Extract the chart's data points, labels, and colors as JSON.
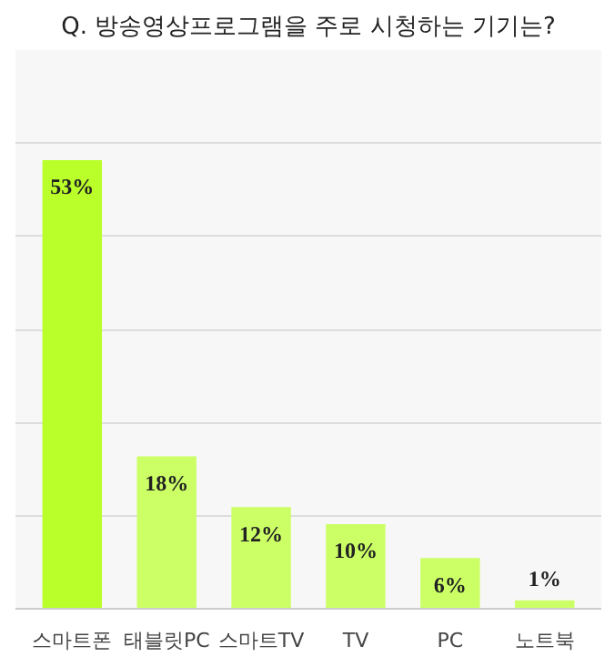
{
  "chart_data": {
    "type": "bar",
    "title": "Q. 방송영상프로그램을 주로 시청하는 기기는?",
    "categories": [
      "스마트폰",
      "태블릿PC",
      "스마트TV",
      "TV",
      "PC",
      "노트북"
    ],
    "values": [
      53,
      18,
      12,
      10,
      6,
      1
    ],
    "value_labels": [
      "53%",
      "18%",
      "12%",
      "10%",
      "6%",
      "1%"
    ],
    "colors": [
      "#bbff2a",
      "#ccff66",
      "#ccff66",
      "#ccff66",
      "#ccff66",
      "#ccff66"
    ],
    "ylim": [
      0,
      66
    ],
    "yticks": [
      {
        "value": 0,
        "label": null
      },
      {
        "value": 11,
        "label": null
      },
      {
        "value": 22,
        "label": null
      },
      {
        "value": 33,
        "label": null
      },
      {
        "value": 44,
        "label": null
      },
      {
        "value": 55,
        "label": null
      },
      {
        "value": 66,
        "label": null
      }
    ],
    "grid": "y",
    "tick_labels": "x"
  }
}
